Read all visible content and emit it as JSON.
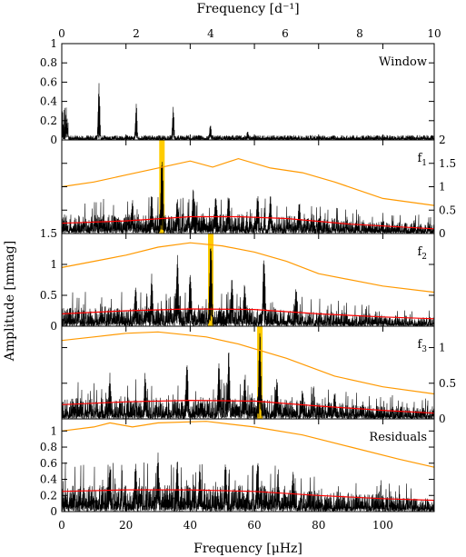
{
  "chart_data": {
    "type": "line",
    "title": "",
    "xlabel": "Frequency [μHz]",
    "x2label": "Frequency [d⁻¹]",
    "ylabel": "Amplitude [mmag]",
    "xlim": [
      0,
      116
    ],
    "x2lim": [
      0,
      10
    ],
    "x_ticks": [
      "0",
      "20",
      "40",
      "60",
      "80",
      "100"
    ],
    "x2_ticks": [
      "0",
      "2",
      "4",
      "6",
      "8",
      "10"
    ],
    "colors": {
      "spectrum": "#000000",
      "orange_curve": "#ff9900",
      "red_curve": "#ff0000",
      "highlight": "#ffcc00"
    },
    "panels": [
      {
        "label": "Window",
        "ylim": [
          0,
          1
        ],
        "y_ticks_side": "left",
        "y_ticks": [
          "0",
          "0.2",
          "0.4",
          "0.6",
          "0.8",
          "1"
        ],
        "peaks": [
          [
            11.6,
            0.68
          ],
          [
            23.2,
            0.44
          ],
          [
            34.7,
            0.38
          ],
          [
            46.3,
            0.18
          ],
          [
            57.9,
            0.1
          ]
        ],
        "noise_level": 0.04
      },
      {
        "label": "f1",
        "ylim": [
          0,
          2
        ],
        "y_ticks_side": "right",
        "y_ticks": [
          "0",
          "0.5",
          "1",
          "1.5",
          "2"
        ],
        "highlight_x": 31.2,
        "peaks": [
          [
            31.2,
            1.85
          ],
          [
            28,
            0.9
          ],
          [
            48,
            1.0
          ],
          [
            41,
            1.05
          ],
          [
            52,
            0.95
          ],
          [
            61,
            0.9
          ],
          [
            65,
            0.85
          ],
          [
            22,
            0.75
          ],
          [
            36,
            0.8
          ],
          [
            74,
            0.7
          ]
        ],
        "noise_level": 0.28,
        "orange": [
          [
            0,
            1.0
          ],
          [
            10,
            1.1
          ],
          [
            20,
            1.25
          ],
          [
            30,
            1.4
          ],
          [
            40,
            1.55
          ],
          [
            47,
            1.42
          ],
          [
            55,
            1.6
          ],
          [
            65,
            1.4
          ],
          [
            75,
            1.3
          ],
          [
            85,
            1.1
          ],
          [
            100,
            0.75
          ],
          [
            116,
            0.6
          ]
        ],
        "red": [
          [
            0,
            0.22
          ],
          [
            20,
            0.27
          ],
          [
            40,
            0.36
          ],
          [
            55,
            0.36
          ],
          [
            70,
            0.32
          ],
          [
            90,
            0.2
          ],
          [
            116,
            0.1
          ]
        ]
      },
      {
        "label": "f2",
        "ylim": [
          0,
          1.5
        ],
        "y_ticks_side": "left",
        "y_ticks": [
          "0",
          "0.5",
          "1",
          "1.5"
        ],
        "highlight_x": 46.4,
        "peaks": [
          [
            46.4,
            1.48
          ],
          [
            36,
            1.2
          ],
          [
            63,
            1.2
          ],
          [
            40,
            0.95
          ],
          [
            28,
            0.85
          ],
          [
            53,
            0.8
          ],
          [
            57,
            0.75
          ],
          [
            73,
            0.7
          ],
          [
            23,
            0.65
          ]
        ],
        "noise_level": 0.2,
        "orange": [
          [
            0,
            0.95
          ],
          [
            10,
            1.05
          ],
          [
            20,
            1.15
          ],
          [
            30,
            1.28
          ],
          [
            40,
            1.35
          ],
          [
            50,
            1.3
          ],
          [
            60,
            1.2
          ],
          [
            70,
            1.05
          ],
          [
            80,
            0.85
          ],
          [
            100,
            0.65
          ],
          [
            116,
            0.55
          ]
        ],
        "red": [
          [
            0,
            0.2
          ],
          [
            20,
            0.25
          ],
          [
            40,
            0.28
          ],
          [
            60,
            0.27
          ],
          [
            80,
            0.2
          ],
          [
            100,
            0.15
          ],
          [
            116,
            0.12
          ]
        ]
      },
      {
        "label": "f3",
        "ylim": [
          0,
          1.3
        ],
        "y_ticks_side": "right",
        "y_ticks": [
          "0",
          "0.5",
          "1"
        ],
        "highlight_x": 61.7,
        "peaks": [
          [
            61.7,
            1.25
          ],
          [
            52,
            0.95
          ],
          [
            49,
            0.85
          ],
          [
            39,
            0.8
          ],
          [
            15,
            0.65
          ],
          [
            26,
            0.7
          ],
          [
            57,
            0.7
          ],
          [
            67,
            0.6
          ],
          [
            75,
            0.45
          ],
          [
            85,
            0.4
          ]
        ],
        "noise_level": 0.2,
        "orange": [
          [
            0,
            1.1
          ],
          [
            10,
            1.15
          ],
          [
            20,
            1.2
          ],
          [
            30,
            1.22
          ],
          [
            45,
            1.15
          ],
          [
            55,
            1.05
          ],
          [
            70,
            0.85
          ],
          [
            85,
            0.6
          ],
          [
            100,
            0.45
          ],
          [
            116,
            0.35
          ]
        ],
        "red": [
          [
            0,
            0.2
          ],
          [
            20,
            0.24
          ],
          [
            40,
            0.26
          ],
          [
            60,
            0.25
          ],
          [
            80,
            0.18
          ],
          [
            100,
            0.12
          ],
          [
            116,
            0.08
          ]
        ]
      },
      {
        "label": "Residuals",
        "ylim": [
          0,
          1.15
        ],
        "y_ticks_side": "left",
        "y_ticks": [
          "0",
          "0.2",
          "0.4",
          "0.6",
          "0.8",
          "1"
        ],
        "peaks": [
          [
            30,
            0.75
          ],
          [
            36,
            0.7
          ],
          [
            51,
            0.65
          ],
          [
            61,
            0.7
          ],
          [
            23,
            0.65
          ],
          [
            15,
            0.6
          ],
          [
            72,
            0.55
          ],
          [
            43,
            0.6
          ]
        ],
        "noise_level": 0.22,
        "orange": [
          [
            0,
            1.0
          ],
          [
            10,
            1.05
          ],
          [
            15,
            1.1
          ],
          [
            22,
            1.05
          ],
          [
            30,
            1.1
          ],
          [
            45,
            1.12
          ],
          [
            60,
            1.05
          ],
          [
            75,
            0.95
          ],
          [
            90,
            0.8
          ],
          [
            105,
            0.65
          ],
          [
            116,
            0.55
          ]
        ],
        "red": [
          [
            0,
            0.25
          ],
          [
            20,
            0.27
          ],
          [
            40,
            0.27
          ],
          [
            60,
            0.25
          ],
          [
            80,
            0.2
          ],
          [
            100,
            0.16
          ],
          [
            116,
            0.14
          ]
        ]
      }
    ]
  }
}
